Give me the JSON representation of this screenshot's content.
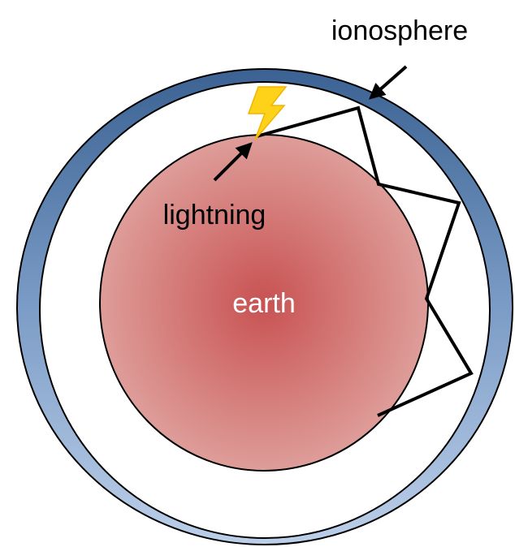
{
  "labels": {
    "ionosphere": "ionosphere",
    "lightning": "lightning",
    "earth": "earth"
  }
}
